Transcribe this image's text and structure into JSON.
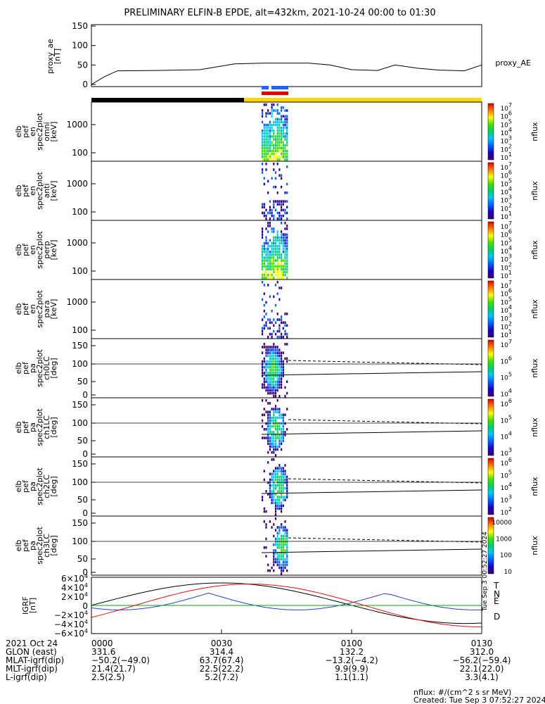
{
  "title": "PRELIMINARY ELFIN-B EPDE, alt=432km, 2021-10-24 00:00 to 01:30",
  "created_note": "Tue Sep  3 00:52:27 2024",
  "panels": [
    {
      "id": "proxy_ae",
      "ylabel": [
        "proxy_ae",
        "[nT]"
      ],
      "yticks": [
        "150",
        "100",
        "50",
        "0"
      ],
      "right_label": "proxy_AE"
    },
    {
      "id": "omni",
      "ylabel": [
        "elb",
        "pef",
        "en",
        "spec2plot",
        "omni",
        "[keV]"
      ],
      "yticks": [
        "1000",
        "100"
      ],
      "unit": "nflux",
      "cbar": [
        "10^7",
        "10^6",
        "10^5",
        "10^4",
        "10^3",
        "10^2",
        "10^1"
      ]
    },
    {
      "id": "anti",
      "ylabel": [
        "elb",
        "pef",
        "en",
        "spec2plot",
        "anti",
        "[keV]"
      ],
      "yticks": [
        "1000",
        "100"
      ],
      "unit": "nflux",
      "cbar": [
        "10^7",
        "10^6",
        "10^5",
        "10^4",
        "10^3",
        "10^2",
        "10^1"
      ]
    },
    {
      "id": "perp",
      "ylabel": [
        "elb",
        "pef",
        "en",
        "spec2plot",
        "perp",
        "[keV]"
      ],
      "yticks": [
        "1000",
        "100"
      ],
      "unit": "nflux",
      "cbar": [
        "10^7",
        "10^6",
        "10^5",
        "10^4",
        "10^3",
        "10^2",
        "10^1"
      ]
    },
    {
      "id": "para",
      "ylabel": [
        "elb",
        "pef",
        "en",
        "spec2plot",
        "para",
        "[keV]"
      ],
      "yticks": [
        "1000",
        "100"
      ],
      "unit": "nflux",
      "cbar": [
        "10^7",
        "10^6",
        "10^5",
        "10^4",
        "10^3",
        "10^2",
        "10^1"
      ]
    },
    {
      "id": "ch0LC",
      "ylabel": [
        "elb",
        "pef",
        "pa",
        "spec2plot",
        "ch0LC",
        "[deg]"
      ],
      "yticks": [
        "150",
        "100",
        "50",
        "0"
      ],
      "unit": "nflux",
      "cbar": [
        "10^7",
        "10^6",
        "10^5",
        "10^4"
      ]
    },
    {
      "id": "ch1LC",
      "ylabel": [
        "elb",
        "pef",
        "pa",
        "spec2plot",
        "ch1LC",
        "[deg]"
      ],
      "yticks": [
        "150",
        "100",
        "50",
        "0"
      ],
      "unit": "nflux",
      "cbar": [
        "10^6",
        "10^5",
        "10^4",
        "10^3"
      ]
    },
    {
      "id": "ch2LC",
      "ylabel": [
        "elb",
        "pef",
        "pa",
        "spec2plot",
        "ch2LC",
        "[deg]"
      ],
      "yticks": [
        "150",
        "100",
        "50",
        "0"
      ],
      "unit": "nflux",
      "cbar": [
        "10^6",
        "10^5",
        "10^4",
        "10^3",
        "10^2"
      ]
    },
    {
      "id": "ch3LC",
      "ylabel": [
        "elb",
        "pef",
        "pa",
        "spec2plot",
        "ch3LC",
        "[deg]"
      ],
      "yticks": [
        "150",
        "100",
        "50",
        "0"
      ],
      "unit": "nflux",
      "cbar": [
        "10000",
        "1000",
        "100",
        "10"
      ]
    },
    {
      "id": "igrf",
      "ylabel": [
        "IGRF",
        "[nT]"
      ],
      "yticks": [
        "6×10^4",
        "4×10^4",
        "2×10^4",
        "0",
        "−2×10^4",
        "−4×10^4",
        "−6×10^4"
      ],
      "components": [
        "T",
        "N",
        "E",
        "D"
      ]
    }
  ],
  "chart_data": {
    "type": "line",
    "x_range": [
      "2021-10-24 00:00",
      "2021-10-24 01:30"
    ],
    "x_ticks": [
      "0000",
      "0030",
      "0100",
      "0130"
    ],
    "proxy_ae": {
      "ylim": [
        0,
        150
      ],
      "t_min": [
        0,
        3,
        6,
        15,
        25,
        33,
        40,
        50,
        55,
        60,
        66,
        70,
        75,
        80,
        86,
        90
      ],
      "values": [
        0,
        20,
        35,
        36,
        38,
        53,
        55,
        55,
        50,
        38,
        36,
        50,
        42,
        37,
        35,
        50
      ]
    },
    "igrf": {
      "ylim": [
        -60000,
        60000
      ],
      "series": [
        {
          "name": "T",
          "color": "#000000"
        },
        {
          "name": "N",
          "color": "#2340d0"
        },
        {
          "name": "E",
          "color": "#10a010"
        },
        {
          "name": "D",
          "color": "#e01010"
        }
      ]
    }
  },
  "footer": {
    "rows": [
      {
        "label": "2021 Oct 24",
        "vals": [
          "0000",
          "0030",
          "0100",
          "0130"
        ]
      },
      {
        "label": "GLON (east)",
        "vals": [
          "331.6",
          "314.4",
          "132.2",
          "312.0"
        ]
      },
      {
        "label": "MLAT-igrf(dip)",
        "vals": [
          "−50.2(−49.0)",
          "63.7(67.4)",
          "−13.2(−4.2)",
          "−56.2(−59.4)"
        ]
      },
      {
        "label": "MLT-igrf(dip)",
        "vals": [
          "21.4(21.7)",
          "22.5(22.2)",
          "9.9(9.9)",
          "22.1(22.0)"
        ]
      },
      {
        "label": "L-igrf(dip)",
        "vals": [
          "2.5(2.5)",
          "5.2(7.2)",
          "1.1(1.1)",
          "3.3(4.1)"
        ]
      }
    ],
    "unit_note": "nflux: #/(cm^2 s sr MeV)",
    "created": "Created: Tue Sep  3 07:52:27 2024"
  }
}
